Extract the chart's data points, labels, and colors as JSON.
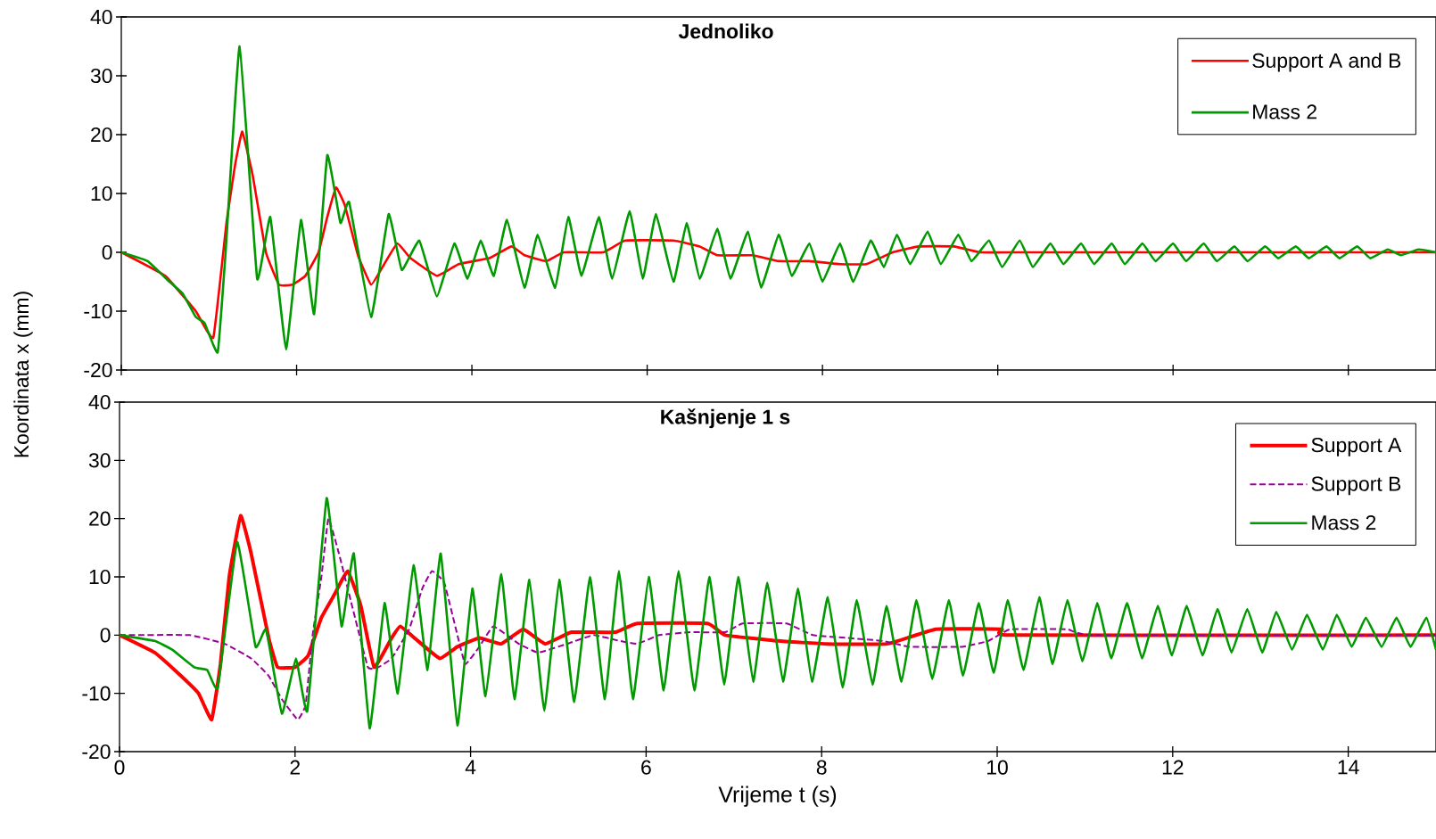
{
  "chart_data": [
    {
      "type": "line",
      "title": "Jednoliko",
      "ylabel": "Koordinata x (mm)",
      "xlim": [
        0,
        15
      ],
      "ylim": [
        -20,
        40
      ],
      "xticks": [
        0,
        2,
        4,
        6,
        8,
        10,
        12,
        14
      ],
      "yticks": [
        -20,
        -10,
        0,
        10,
        20,
        30,
        40
      ],
      "tick_labels": "y",
      "legend": "top right",
      "series": [
        {
          "name": "Support A and B",
          "color": "#ff0000",
          "line_style": "solid",
          "x": [
            0,
            0.5,
            0.85,
            1.05,
            1.2,
            1.3,
            1.38,
            1.5,
            1.65,
            1.8,
            1.95,
            2.1,
            2.25,
            2.35,
            2.45,
            2.55,
            2.7,
            2.85,
            3.0,
            3.15,
            3.3,
            3.6,
            3.85,
            4.2,
            4.45,
            4.6,
            4.85,
            5.05,
            5.5,
            5.75,
            6.3,
            6.6,
            6.8,
            7.2,
            7.5,
            7.85,
            8.2,
            8.5,
            8.8,
            9.1,
            9.5,
            9.8,
            10.2,
            15
          ],
          "values": [
            0,
            -4,
            -10,
            -14.5,
            5,
            15,
            20.5,
            13,
            0,
            -5.5,
            -5.5,
            -4,
            0,
            6,
            11,
            8,
            -0.5,
            -5.5,
            -2,
            1.5,
            -1,
            -4,
            -2,
            -1,
            1,
            -0.5,
            -1.5,
            0,
            0,
            2,
            2,
            1,
            -0.5,
            -0.5,
            -1.5,
            -1.5,
            -2,
            -2,
            0,
            1,
            1,
            0,
            0,
            0
          ]
        },
        {
          "name": "Mass 2",
          "color": "#009900",
          "line_style": "solid",
          "x": [
            0,
            0.3,
            0.55,
            0.7,
            0.85,
            0.95,
            1.1,
            1.19,
            1.35,
            1.55,
            1.7,
            1.88,
            2.05,
            2.2,
            2.35,
            2.5,
            2.6,
            2.85,
            3.05,
            3.2,
            3.4,
            3.6,
            3.8,
            3.95,
            4.1,
            4.25,
            4.4,
            4.6,
            4.75,
            4.95,
            5.1,
            5.25,
            5.45,
            5.6,
            5.8,
            5.95,
            6.1,
            6.3,
            6.45,
            6.6,
            6.8,
            6.95,
            7.15,
            7.3,
            7.5,
            7.65,
            7.85,
            8.0,
            8.2,
            8.35,
            8.55,
            8.7,
            8.85,
            9.0,
            9.2,
            9.35,
            9.55,
            9.7,
            9.9,
            10.05,
            10.25,
            10.4,
            10.6,
            10.75,
            10.95,
            11.1,
            11.3,
            11.45,
            11.65,
            11.8,
            12.0,
            12.15,
            12.35,
            12.5,
            12.7,
            12.85,
            13.05,
            13.2,
            13.4,
            13.55,
            13.75,
            13.9,
            14.1,
            14.25,
            14.45,
            14.6,
            14.8,
            15
          ],
          "values": [
            0,
            -1.5,
            -5,
            -7,
            -11,
            -12,
            -17,
            0,
            35,
            -4.5,
            6,
            -16.5,
            5.5,
            -10.5,
            16.5,
            5,
            8.5,
            -11,
            6.5,
            -3,
            2,
            -7.5,
            1.5,
            -4.5,
            2,
            -4,
            5.5,
            -6,
            3,
            -6,
            6,
            -4,
            6,
            -4.5,
            7,
            -4.5,
            6.5,
            -5,
            5,
            -4.5,
            4,
            -4.5,
            3.5,
            -6,
            3,
            -4,
            1.5,
            -5,
            1.5,
            -5,
            2,
            -2.5,
            3,
            -2,
            3.5,
            -2,
            3,
            -1.5,
            2,
            -2.5,
            2,
            -2.5,
            1.5,
            -2,
            1.5,
            -2,
            1.5,
            -2,
            1.5,
            -1.5,
            1.5,
            -1.5,
            1.5,
            -1.5,
            1,
            -1.5,
            1,
            -1,
            1,
            -1,
            1,
            -1,
            1,
            -1,
            0.5,
            -0.5,
            0.5,
            0
          ]
        }
      ]
    },
    {
      "type": "line",
      "title": "Kašnjenje 1 s",
      "xlabel": "Vrijeme t (s)",
      "xlim": [
        0,
        15
      ],
      "ylim": [
        -20,
        40
      ],
      "xticks": [
        0,
        2,
        4,
        6,
        8,
        10,
        12,
        14
      ],
      "yticks": [
        -20,
        -10,
        0,
        10,
        20,
        30,
        40
      ],
      "legend": "top right",
      "series": [
        {
          "name": "Support A",
          "color": "#ff0000",
          "line_style": "solid",
          "x": [
            0,
            0.4,
            0.7,
            0.9,
            1.05,
            1.15,
            1.25,
            1.38,
            1.5,
            1.7,
            1.8,
            2.0,
            2.15,
            2.3,
            2.45,
            2.6,
            2.75,
            2.9,
            3.1,
            3.2,
            3.4,
            3.65,
            3.85,
            4.1,
            4.35,
            4.6,
            4.85,
            5.15,
            5.65,
            5.9,
            6.7,
            6.9,
            7.5,
            8.05,
            8.75,
            9.3,
            10.05,
            10.15,
            15
          ],
          "values": [
            0,
            -3,
            -7,
            -10,
            -14.5,
            -5,
            10,
            20.5,
            14,
            -0.5,
            -5.5,
            -5.5,
            -3.5,
            3,
            7,
            11,
            5,
            -5.5,
            -0.5,
            1.5,
            -1,
            -4,
            -2,
            -0.5,
            -1.5,
            1,
            -1.5,
            0.5,
            0.5,
            2,
            2,
            0,
            -1,
            -1.5,
            -1.5,
            1,
            1,
            0,
            0
          ]
        },
        {
          "name": "Support B",
          "color": "#990099",
          "line_style": "dashed",
          "x": [
            0,
            0.8,
            1.2,
            1.5,
            1.7,
            1.85,
            2.03,
            2.12,
            2.2,
            2.3,
            2.38,
            2.5,
            2.65,
            2.83,
            2.95,
            3.1,
            3.3,
            3.45,
            3.56,
            3.7,
            3.85,
            3.94,
            4.1,
            4.26,
            4.55,
            4.77,
            5.1,
            5.4,
            5.7,
            5.9,
            6.15,
            6.5,
            6.9,
            7.1,
            7.6,
            7.9,
            8.3,
            8.7,
            9.0,
            9.6,
            9.9,
            10.15,
            10.8,
            11.1,
            15
          ],
          "values": [
            0,
            0,
            -1.5,
            -4,
            -7,
            -11,
            -14.5,
            -12,
            0,
            10,
            20,
            14,
            5,
            -5.5,
            -5.5,
            -4,
            1,
            8,
            11,
            9,
            0,
            -5,
            -2,
            1.5,
            -1.5,
            -3,
            -1.5,
            0,
            -1,
            -1.5,
            0,
            0.5,
            0.5,
            2,
            2,
            0,
            -0.5,
            -1,
            -2,
            -2,
            -1,
            1,
            1,
            0,
            0
          ]
        },
        {
          "name": "Mass 2",
          "color": "#009900",
          "line_style": "solid",
          "x": [
            0,
            0.4,
            0.6,
            0.85,
            1.0,
            1.12,
            1.34,
            1.55,
            1.67,
            1.85,
            2.01,
            2.14,
            2.36,
            2.53,
            2.67,
            2.85,
            3.02,
            3.17,
            3.35,
            3.51,
            3.66,
            3.85,
            4.02,
            4.17,
            4.35,
            4.5,
            4.67,
            4.84,
            5.01,
            5.18,
            5.36,
            5.53,
            5.69,
            5.85,
            6.03,
            6.2,
            6.37,
            6.55,
            6.72,
            6.89,
            7.05,
            7.22,
            7.38,
            7.56,
            7.73,
            7.89,
            8.07,
            8.24,
            8.4,
            8.58,
            8.74,
            8.91,
            9.08,
            9.26,
            9.45,
            9.61,
            9.79,
            9.96,
            10.12,
            10.3,
            10.48,
            10.63,
            10.8,
            10.97,
            11.14,
            11.3,
            11.48,
            11.65,
            11.83,
            11.99,
            12.16,
            12.34,
            12.51,
            12.67,
            12.85,
            13.02,
            13.18,
            13.36,
            13.53,
            13.71,
            13.87,
            14.04,
            14.2,
            14.38,
            14.55,
            14.71,
            14.89,
            15
          ],
          "values": [
            0,
            -1,
            -2.5,
            -5.5,
            -6,
            -9,
            16,
            -2,
            1,
            -13.5,
            -4,
            -13,
            23.5,
            1.5,
            14,
            -16,
            5.5,
            -10,
            12,
            -6,
            14,
            -15.5,
            8,
            -10.5,
            10.5,
            -11,
            9.5,
            -13,
            9.5,
            -11.5,
            10,
            -11,
            11,
            -11,
            10,
            -9.5,
            11,
            -9.5,
            10,
            -8.5,
            10,
            -8,
            9,
            -8,
            8,
            -8,
            6.5,
            -9,
            6,
            -8.5,
            5,
            -8,
            6,
            -7.5,
            6,
            -7,
            5.5,
            -6.5,
            6,
            -6,
            6.5,
            -5,
            6,
            -4.5,
            5.5,
            -4,
            5.5,
            -4,
            5,
            -3.5,
            5,
            -3.5,
            4.5,
            -3,
            4.5,
            -3,
            4,
            -2.5,
            3.5,
            -2.5,
            3.5,
            -2,
            3,
            -2,
            3,
            -2,
            3,
            -2.5
          ]
        }
      ]
    }
  ]
}
